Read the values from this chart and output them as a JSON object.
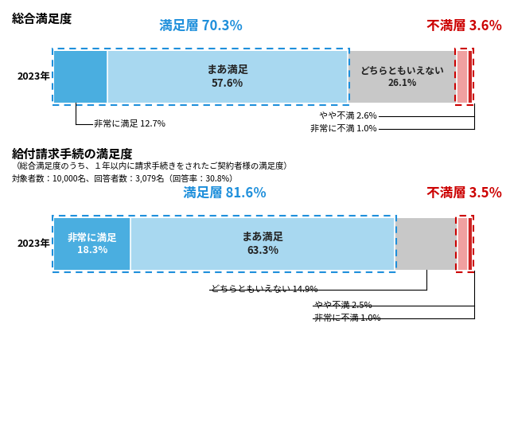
{
  "chart1": {
    "title": "総合満足度",
    "year_label": "2023年",
    "satisfied_label": "満足層 70.3％",
    "dissatisfied_label": "不満層 3.6％",
    "segments": [
      {
        "label": "非常に満足",
        "value": 12.7,
        "color": "#4aaee0",
        "text_color": "#ffffff"
      },
      {
        "label": "まあ満足",
        "value": 57.6,
        "color": "#a8d8f0",
        "text_color": "#222222"
      },
      {
        "label": "どちらともいえない",
        "value": 26.1,
        "color": "#c8c8c8",
        "text_color": "#222222"
      },
      {
        "label": "やや不満",
        "value": 2.6,
        "color": "#f0a0a0",
        "text_color": "#ffffff"
      },
      {
        "label": "非常に不満",
        "value": 1.0,
        "color": "#cc2222",
        "text_color": "#ffffff"
      }
    ],
    "annot_hijou_manzoku": "非常に満足 12.7%",
    "annot_yaya_fuman": "やや不満 2.6%",
    "annot_hijou_fuman": "非常に不満 1.0%",
    "bar_label_maa": "まあ満足\n57.6%",
    "bar_label_dochira": "どちらともいえない\n26.1%"
  },
  "chart2": {
    "title": "給付請求手続の満足度",
    "subtitle1": "（総合満足度のうち、１年以内に請求手続きをされたご契約者様の満足度）",
    "subtitle2": "対象者数：10,000名、回答者数：3,079名（回答率：30.8%）",
    "year_label": "2023年",
    "satisfied_label": "満足層 81.6％",
    "dissatisfied_label": "不満層 3.5％",
    "segments": [
      {
        "label": "非常に満足",
        "value": 18.3,
        "color": "#4aaee0",
        "text_color": "#ffffff"
      },
      {
        "label": "まあ満足",
        "value": 63.3,
        "color": "#a8d8f0",
        "text_color": "#222222"
      },
      {
        "label": "どちらともいえない",
        "value": 14.9,
        "color": "#c8c8c8",
        "text_color": "#222222"
      },
      {
        "label": "やや不満",
        "value": 2.5,
        "color": "#f0a0a0",
        "text_color": "#ffffff"
      },
      {
        "label": "非常に不満",
        "value": 1.0,
        "color": "#cc2222",
        "text_color": "#ffffff"
      }
    ],
    "bar_label_hijou": "非常に満足\n18.3%",
    "bar_label_maa": "まあ満足\n63.3%",
    "annot_dochira": "どちらともいえない 14.9%",
    "annot_yaya_fuman": "やや不満 2.5%",
    "annot_hijou_fuman": "非常に不満 1.0%"
  },
  "colors": {
    "blue": "#1e8fdb",
    "red": "#cc0000",
    "background": "#ffffff"
  }
}
